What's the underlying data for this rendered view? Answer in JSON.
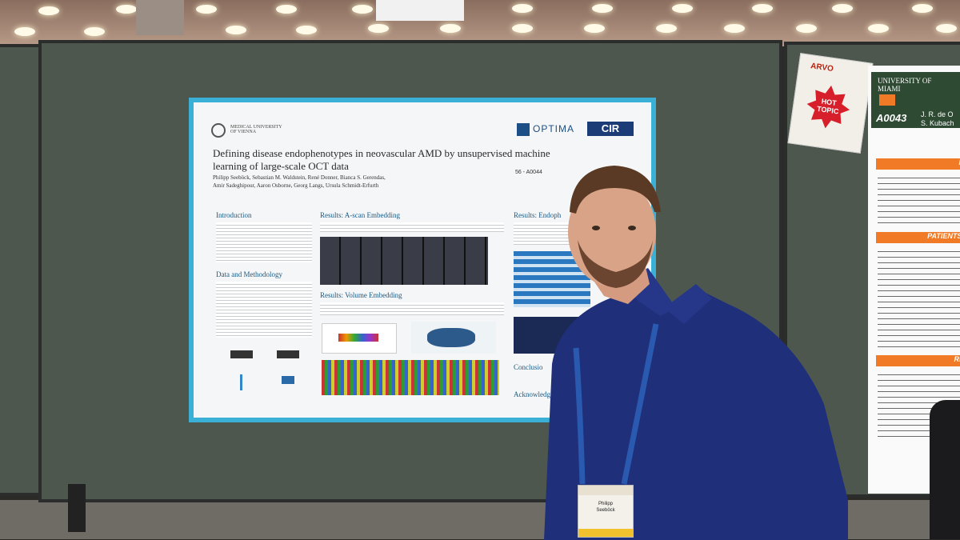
{
  "poster": {
    "institution": "MEDICAL UNIVERSITY OF VIENNA",
    "logo_optima": "OPTIMA",
    "logo_cir": "CIR",
    "title_line1": "Defining disease endophenotypes in neovascular AMD by unsupervised machine",
    "title_line2": "learning of large-scale OCT data",
    "authors_line1": "Philipp Seeböck, Sebastian M. Waldstein, René Donner, Bianca S. Gerendas,",
    "authors_line2": "Amir Sadeghipour, Aaron Osborne, Georg Langs, Ursula Schmidt-Erfurth",
    "poster_id": "56 - A0044",
    "section_intro": "Introduction",
    "section_data": "Data and Methodology",
    "section_ascan": "Results: A-scan Embedding",
    "section_volume": "Results: Volume Embedding",
    "section_endo": "Results: Endoph",
    "section_conclusion": "Conclusio",
    "section_ack": "Acknowledg"
  },
  "right_poster": {
    "university": "UNIVERSITY OF MIAMI",
    "id": "A0043",
    "authors": "J. R. de O",
    "authors2": "S. Kubach",
    "bar1": "PU",
    "bar2": "PATIENTS A",
    "bar3": "RES"
  },
  "hot_sign": {
    "arvo": "ARVO",
    "label": "HOT TOPIC"
  },
  "badge": {
    "name": "Philipp",
    "name2": "Seeböck"
  },
  "colors": {
    "poster_border": "#3ab0d6",
    "board": "#4d574e",
    "shirt": "#1f2f7a",
    "orange": "#f07a25"
  }
}
